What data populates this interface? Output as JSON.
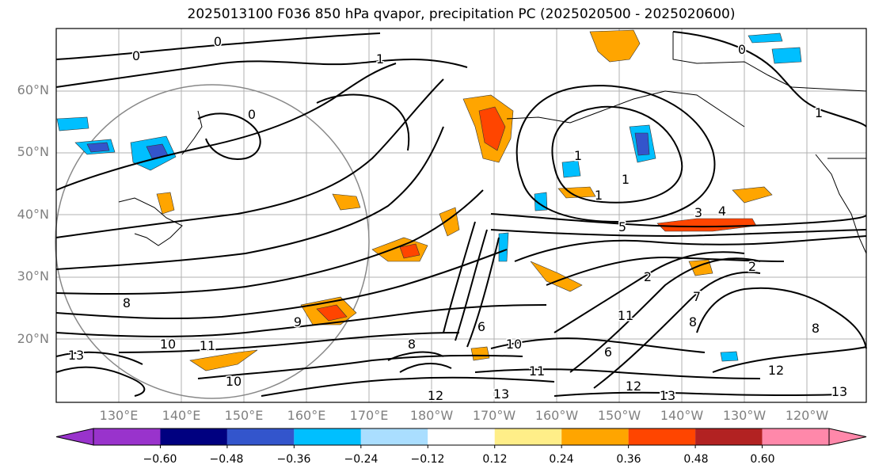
{
  "title": "2025013100 F036 850 hPa qvapor, precipitation PC (2025020500 - 2025020600)",
  "lat_labels": [
    "60°N",
    "50°N",
    "40°N",
    "30°N",
    "20°N"
  ],
  "lon_labels": [
    "130°E",
    "140°E",
    "150°E",
    "160°E",
    "170°E",
    "180°W",
    "170°W",
    "160°W",
    "150°W",
    "140°W",
    "130°W",
    "120°W"
  ],
  "colorbar": {
    "colors": [
      "#9933cc",
      "#000080",
      "#3355cc",
      "#00bfff",
      "#aadeff",
      "#ffffff",
      "#ffee88",
      "#ffa500",
      "#ff4500",
      "#b22222",
      "#ff88aa"
    ],
    "tick_labels": [
      "−0.60",
      "−0.48",
      "−0.36",
      "−0.24",
      "−0.12",
      "0.12",
      "0.24",
      "0.36",
      "0.48",
      "0.60"
    ]
  },
  "contour_labels": [
    "0",
    "0",
    "0",
    "0",
    "1",
    "1",
    "1",
    "1",
    "1",
    "2",
    "2",
    "3",
    "4",
    "5",
    "6",
    "6",
    "7",
    "8",
    "8",
    "8",
    "8",
    "9",
    "10",
    "10",
    "10",
    "11",
    "11",
    "11",
    "12",
    "12",
    "12",
    "13",
    "13",
    "13",
    "13"
  ]
}
